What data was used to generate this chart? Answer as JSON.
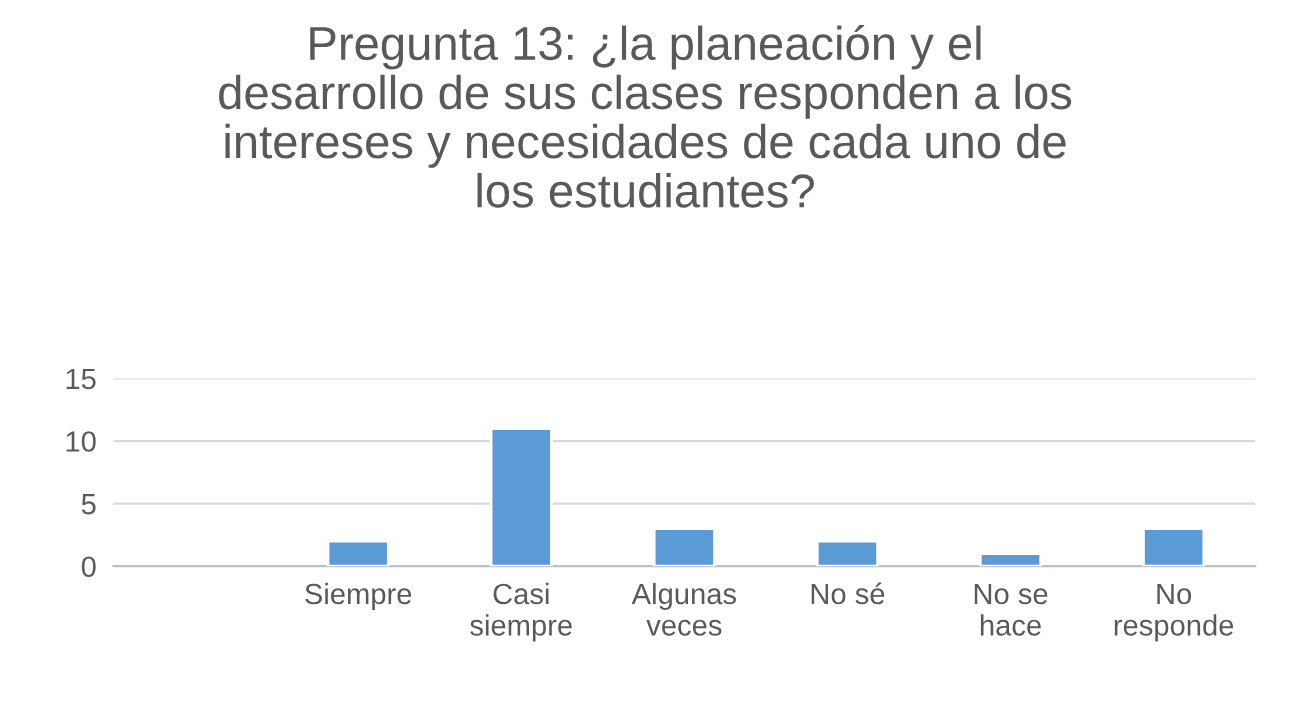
{
  "chart_data": {
    "type": "bar",
    "title": "Pregunta 13: ¿la planeación y el\ndesarrollo de sus clases responden a los\nintereses y necesidades de cada uno de\nlos estudiantes?",
    "categories": [
      null,
      "Siempre",
      "Casi\nsiempre",
      "Algunas\nveces",
      "No sé",
      "No se\nhace",
      "No\nresponde"
    ],
    "values": [
      null,
      2,
      11,
      3,
      2,
      1,
      3
    ],
    "color": "#5b9bd5",
    "ylim": [
      0,
      15
    ],
    "yticks": [
      0,
      5,
      10,
      15
    ],
    "grid": "y"
  }
}
